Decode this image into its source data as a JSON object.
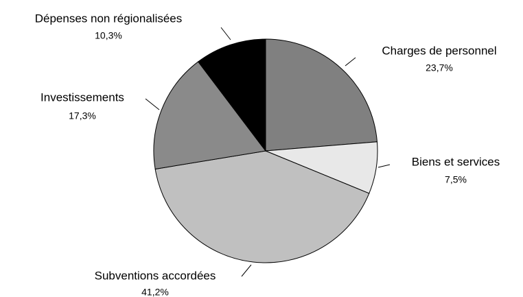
{
  "chart_data": {
    "type": "pie",
    "categories": [
      "Charges de personnel",
      "Biens et services",
      "Subventions accordées",
      "Investissements",
      "Dépenses non régionalisées"
    ],
    "values": [
      23.7,
      7.5,
      41.2,
      17.3,
      10.3
    ],
    "value_labels": [
      "23,7%",
      "7,5%",
      "41,2%",
      "17,3%",
      "10,3%"
    ],
    "colors": [
      "#808080",
      "#e8e8e8",
      "#c0c0c0",
      "#8a8a8a",
      "#000000"
    ]
  }
}
